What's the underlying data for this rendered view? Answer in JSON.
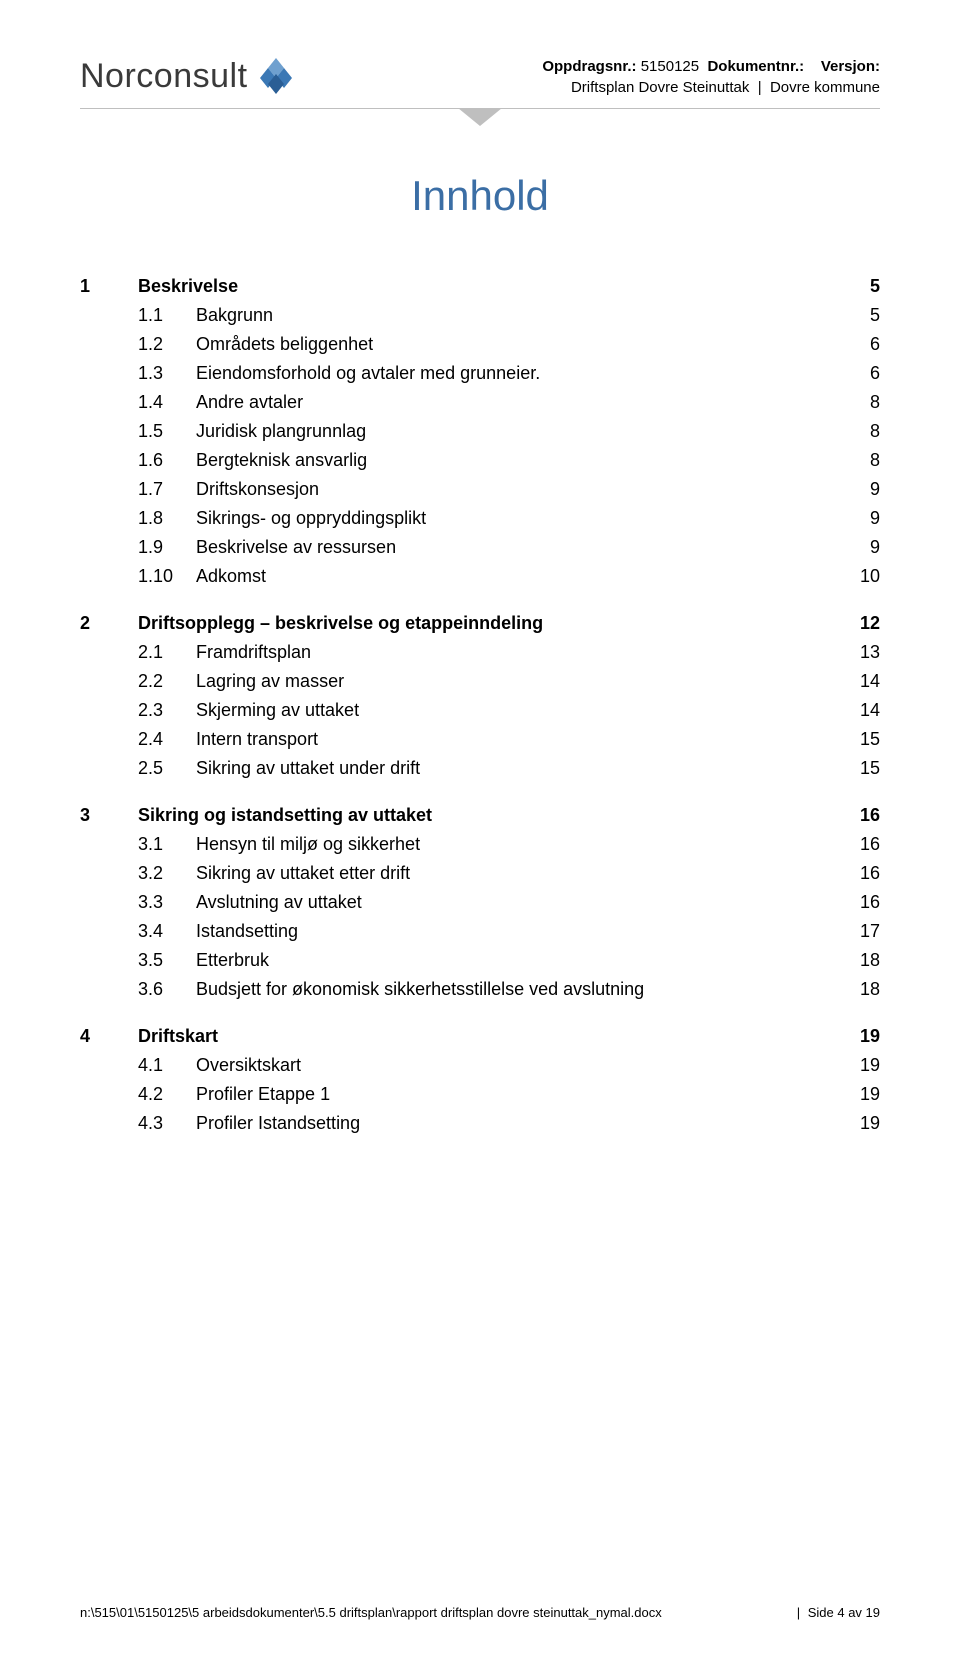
{
  "header": {
    "logo_text": "Norconsult",
    "meta": {
      "line1_label1": "Oppdragsnr.:",
      "line1_val1": "5150125",
      "line1_label2": "Dokumentnr.:",
      "line1_label3": "Versjon:",
      "line2_left": "Driftsplan Dovre Steinuttak",
      "line2_right": "Dovre kommune"
    }
  },
  "title": "Innhold",
  "toc": [
    {
      "lvl": 1,
      "num": "1",
      "label": "Beskrivelse",
      "page": "5"
    },
    {
      "lvl": 2,
      "num": "1.1",
      "label": "Bakgrunn",
      "page": "5"
    },
    {
      "lvl": 2,
      "num": "1.2",
      "label": "Områdets beliggenhet",
      "page": "6"
    },
    {
      "lvl": 2,
      "num": "1.3",
      "label": "Eiendomsforhold og avtaler med grunneier.",
      "page": "6"
    },
    {
      "lvl": 2,
      "num": "1.4",
      "label": "Andre avtaler",
      "page": "8"
    },
    {
      "lvl": 2,
      "num": "1.5",
      "label": "Juridisk plangrunnlag",
      "page": "8"
    },
    {
      "lvl": 2,
      "num": "1.6",
      "label": "Bergteknisk ansvarlig",
      "page": "8"
    },
    {
      "lvl": 2,
      "num": "1.7",
      "label": "Driftskonsesjon",
      "page": "9"
    },
    {
      "lvl": 2,
      "num": "1.8",
      "label": "Sikrings- og oppryddingsplikt",
      "page": "9"
    },
    {
      "lvl": 2,
      "num": "1.9",
      "label": "Beskrivelse av ressursen",
      "page": "9"
    },
    {
      "lvl": 2,
      "num": "1.10",
      "label": "Adkomst",
      "page": "10"
    },
    {
      "lvl": 1,
      "num": "2",
      "label": "Driftsopplegg – beskrivelse og etappeinndeling",
      "page": "12"
    },
    {
      "lvl": 2,
      "num": "2.1",
      "label": "Framdriftsplan",
      "page": "13"
    },
    {
      "lvl": 2,
      "num": "2.2",
      "label": "Lagring av masser",
      "page": "14"
    },
    {
      "lvl": 2,
      "num": "2.3",
      "label": "Skjerming av uttaket",
      "page": "14"
    },
    {
      "lvl": 2,
      "num": "2.4",
      "label": "Intern transport",
      "page": "15"
    },
    {
      "lvl": 2,
      "num": "2.5",
      "label": "Sikring av uttaket under drift",
      "page": "15"
    },
    {
      "lvl": 1,
      "num": "3",
      "label": "Sikring og istandsetting av uttaket",
      "page": "16"
    },
    {
      "lvl": 2,
      "num": "3.1",
      "label": "Hensyn til miljø og sikkerhet",
      "page": "16"
    },
    {
      "lvl": 2,
      "num": "3.2",
      "label": "Sikring av uttaket etter drift",
      "page": "16"
    },
    {
      "lvl": 2,
      "num": "3.3",
      "label": "Avslutning av uttaket",
      "page": "16"
    },
    {
      "lvl": 2,
      "num": "3.4",
      "label": "Istandsetting",
      "page": "17"
    },
    {
      "lvl": 2,
      "num": "3.5",
      "label": "Etterbruk",
      "page": "18"
    },
    {
      "lvl": 2,
      "num": "3.6",
      "label": "Budsjett for økonomisk sikkerhetsstillelse ved avslutning",
      "page": "18"
    },
    {
      "lvl": 1,
      "num": "4",
      "label": "Driftskart",
      "page": "19"
    },
    {
      "lvl": 2,
      "num": "4.1",
      "label": "Oversiktskart",
      "page": "19"
    },
    {
      "lvl": 2,
      "num": "4.2",
      "label": "Profiler Etappe 1",
      "page": "19"
    },
    {
      "lvl": 2,
      "num": "4.3",
      "label": "Profiler Istandsetting",
      "page": "19"
    }
  ],
  "footer": {
    "path": "n:\\515\\01\\5150125\\5 arbeidsdokumenter\\5.5 driftsplan\\rapport driftsplan dovre steinuttak_nymal.docx",
    "page_label": "Side 4 av 19"
  },
  "colors": {
    "accent_blue": "#3b6ea5",
    "logo_blue": "#2f6fb0",
    "rule_grey": "#bfbfbf",
    "chevron_grey": "#bfbfbf"
  }
}
